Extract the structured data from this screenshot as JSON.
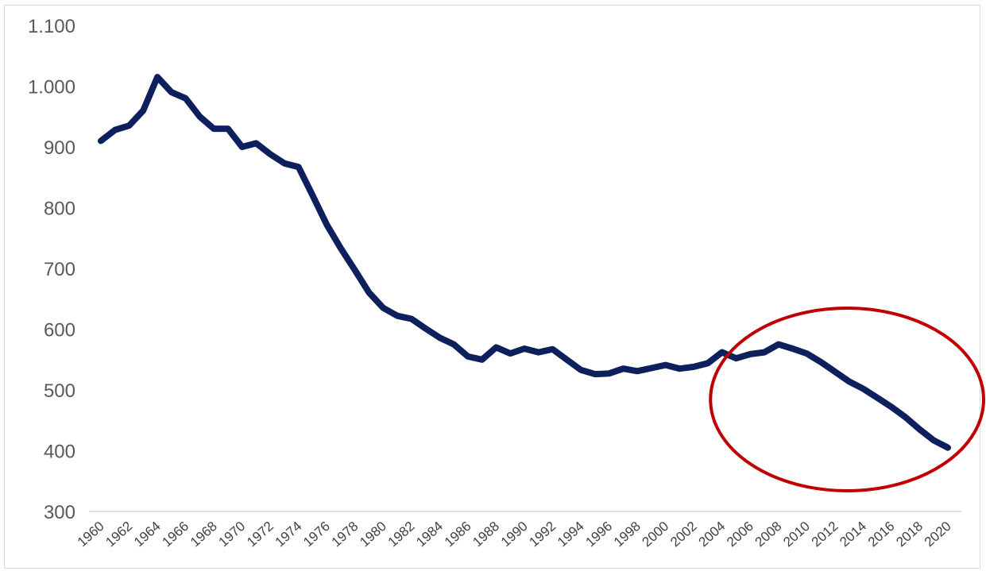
{
  "chart_data": {
    "type": "line",
    "title": "",
    "xlabel": "",
    "ylabel": "",
    "x": [
      1960,
      1961,
      1962,
      1963,
      1964,
      1965,
      1966,
      1967,
      1968,
      1969,
      1970,
      1971,
      1972,
      1973,
      1974,
      1975,
      1976,
      1977,
      1978,
      1979,
      1980,
      1981,
      1982,
      1983,
      1984,
      1985,
      1986,
      1987,
      1988,
      1989,
      1990,
      1991,
      1992,
      1993,
      1994,
      1995,
      1996,
      1997,
      1998,
      1999,
      2000,
      2001,
      2002,
      2003,
      2004,
      2005,
      2006,
      2007,
      2008,
      2009,
      2010,
      2011,
      2012,
      2013,
      2014,
      2015,
      2016,
      2017,
      2018,
      2019,
      2020
    ],
    "series": [
      {
        "values": [
          910,
          928,
          935,
          960,
          1015,
          990,
          980,
          950,
          930,
          930,
          900,
          906,
          888,
          873,
          867,
          820,
          772,
          733,
          697,
          660,
          635,
          622,
          617,
          601,
          586,
          575,
          555,
          550,
          570,
          560,
          568,
          562,
          567,
          550,
          533,
          526,
          527,
          535,
          531,
          536,
          541,
          535,
          538,
          544,
          562,
          552,
          559,
          562,
          575,
          568,
          560,
          546,
          530,
          514,
          502,
          487,
          472,
          455,
          435,
          417,
          405
        ]
      }
    ],
    "ylim": [
      300,
      1100
    ],
    "yticks": [
      300,
      400,
      500,
      600,
      700,
      800,
      900,
      1000,
      1100
    ],
    "ytick_labels": [
      "300",
      "400",
      "500",
      "600",
      "700",
      "800",
      "900",
      "1.000",
      "1.100"
    ],
    "xtick_labels": [
      "1960",
      "1962",
      "1964",
      "1966",
      "1968",
      "1970",
      "1972",
      "1974",
      "1976",
      "1978",
      "1980",
      "1982",
      "1984",
      "1986",
      "1988",
      "1990",
      "1992",
      "1994",
      "1996",
      "1998",
      "2000",
      "2002",
      "2004",
      "2006",
      "2008",
      "2010",
      "2012",
      "2014",
      "2016",
      "2018",
      "2020"
    ],
    "grid": false,
    "line_color": "#0d1f5c",
    "annotation": {
      "shape": "ellipse",
      "color": "#c00000",
      "highlight_from_x": 2006,
      "highlight_to_x": 2020
    }
  }
}
